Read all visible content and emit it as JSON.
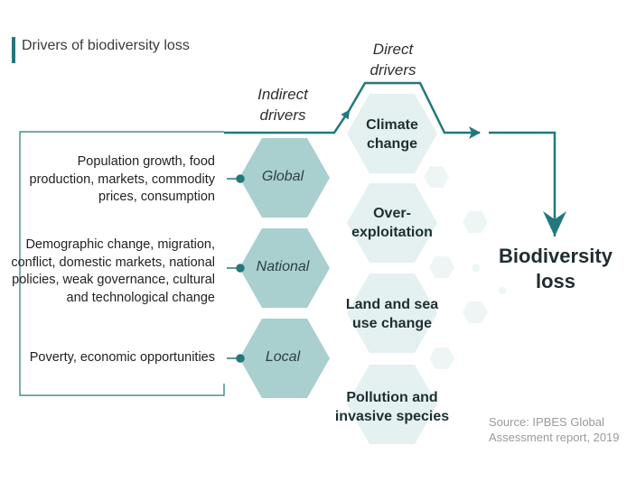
{
  "title": "Drivers of biodiversity loss",
  "indirect_heading": [
    "Indirect",
    "drivers"
  ],
  "direct_heading": [
    "Direct",
    "drivers"
  ],
  "indirect_drivers": [
    {
      "level": "Global",
      "description": [
        "Population growth, food",
        "production, markets, commodity",
        "prices, consumption"
      ]
    },
    {
      "level": "National",
      "description": [
        "Demographic change, migration,",
        "conflict, domestic markets, national",
        "policies, weak governance, cultural",
        "and technological change"
      ]
    },
    {
      "level": "Local",
      "description": [
        "Poverty, economic opportunities"
      ]
    }
  ],
  "direct_drivers": [
    [
      "Climate",
      "change"
    ],
    [
      "Over-",
      "exploitation"
    ],
    [
      "Land and sea",
      "use change"
    ],
    [
      "Pollution and",
      "invasive species"
    ]
  ],
  "outcome": [
    "Biodiversity",
    "loss"
  ],
  "source": [
    "Source: IPBES Global",
    "Assessment report, 2019"
  ],
  "colors": {
    "accent": "#23787c",
    "indirect_hex": "#a9cfcf",
    "direct_hex": "#e5f0f0",
    "decor_hex": "#eef5f5"
  }
}
